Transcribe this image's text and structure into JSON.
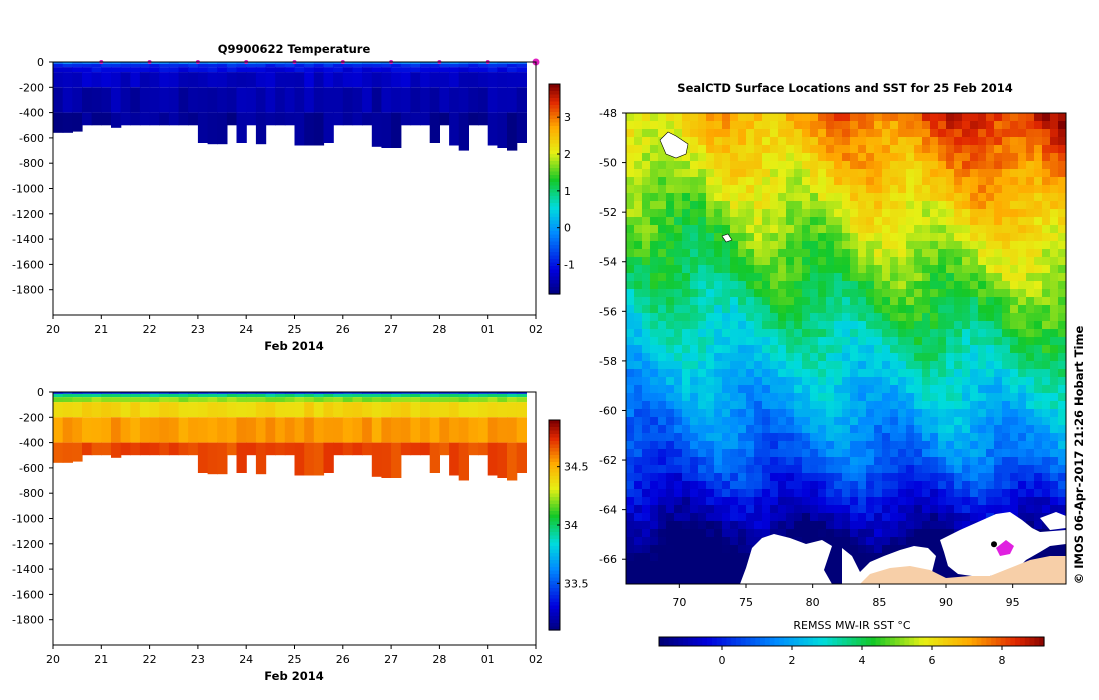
{
  "chart_data": [
    {
      "type": "heatmap",
      "title": "Q9900622  Temperature",
      "variable": "temperature",
      "xlabel": "Feb 2014",
      "x_tick_labels": [
        "20",
        "21",
        "22",
        "23",
        "24",
        "25",
        "26",
        "27",
        "28",
        "01",
        "02"
      ],
      "ylabel": "",
      "y_ticks": [
        0,
        -200,
        -400,
        -600,
        -800,
        -1000,
        -1200,
        -1400,
        -1600,
        -1800
      ],
      "ylim": [
        -2000,
        0
      ],
      "xlim": [
        20,
        30
      ],
      "colorbar": {
        "min": -1.8,
        "max": 3.9,
        "ticks": [
          3,
          2,
          1,
          0,
          -1
        ],
        "tick_labels": [
          "3",
          "2",
          "1",
          "0",
          "-1"
        ]
      },
      "profile_markers_day": [
        21,
        22,
        23,
        24,
        25,
        26,
        27,
        28,
        29,
        30
      ],
      "profile_marker_color": "#e020c0",
      "profiles_day": [
        20.0,
        20.2,
        20.4,
        20.6,
        20.8,
        21.0,
        21.2,
        21.4,
        21.6,
        21.8,
        22.0,
        22.2,
        22.4,
        22.6,
        22.8,
        23.0,
        23.2,
        23.4,
        23.6,
        23.8,
        24.0,
        24.2,
        24.4,
        24.6,
        24.8,
        25.0,
        25.2,
        25.4,
        25.6,
        25.8,
        26.0,
        26.2,
        26.4,
        26.6,
        26.8,
        27.0,
        27.2,
        27.4,
        27.6,
        27.8,
        28.0,
        28.2,
        28.4,
        28.6,
        28.8,
        29.0,
        29.2,
        29.4,
        29.6
      ],
      "profiles_max_depth": [
        560,
        560,
        550,
        500,
        500,
        500,
        520,
        500,
        500,
        500,
        500,
        500,
        500,
        500,
        500,
        640,
        650,
        650,
        500,
        640,
        500,
        650,
        500,
        500,
        500,
        660,
        660,
        660,
        640,
        500,
        500,
        500,
        500,
        670,
        680,
        680,
        500,
        500,
        500,
        640,
        500,
        660,
        700,
        500,
        500,
        660,
        680,
        700,
        640
      ],
      "surface_value": -0.2,
      "deep_value": -1.6
    },
    {
      "type": "heatmap",
      "title": "",
      "variable": "salinity",
      "xlabel": "Feb 2014",
      "x_tick_labels": [
        "20",
        "21",
        "22",
        "23",
        "24",
        "25",
        "26",
        "27",
        "28",
        "01",
        "02"
      ],
      "y_ticks": [
        0,
        -200,
        -400,
        -600,
        -800,
        -1000,
        -1200,
        -1400,
        -1600,
        -1800
      ],
      "ylim": [
        -2000,
        0
      ],
      "xlim": [
        20,
        30
      ],
      "colorbar": {
        "min": 33.1,
        "max": 34.9,
        "ticks": [
          34.5,
          34,
          33.5
        ],
        "tick_labels": [
          "34.5",
          "34",
          "33.5"
        ]
      },
      "surface_value": 33.4,
      "deep_value": 34.7
    },
    {
      "type": "heatmap",
      "title": "SealCTD Surface Locations and SST for 25 Feb 2014",
      "variable": "sea surface temperature",
      "x_tick_labels": [
        "70",
        "75",
        "80",
        "85",
        "90",
        "95"
      ],
      "x_ticks": [
        70,
        75,
        80,
        85,
        90,
        95
      ],
      "xlim": [
        66,
        99
      ],
      "y_tick_labels": [
        "-48",
        "-50",
        "-52",
        "-54",
        "-56",
        "-58",
        "-60",
        "-62",
        "-64",
        "-66"
      ],
      "y_ticks": [
        -48,
        -50,
        -52,
        -54,
        -56,
        -58,
        -60,
        -62,
        -64,
        -66
      ],
      "ylim": [
        -67,
        -48
      ],
      "colorbar": {
        "label": "REMSS MW-IR SST °C",
        "min": -1.8,
        "max": 9.2,
        "ticks": [
          0,
          2,
          4,
          6,
          8
        ],
        "tick_labels": [
          "0",
          "2",
          "4",
          "6",
          "8"
        ]
      },
      "seal_location": {
        "lon": 93.6,
        "lat": -65.4
      },
      "side_label": "© IMOS 06-Apr-2017 21:26 Hobart Time"
    }
  ]
}
